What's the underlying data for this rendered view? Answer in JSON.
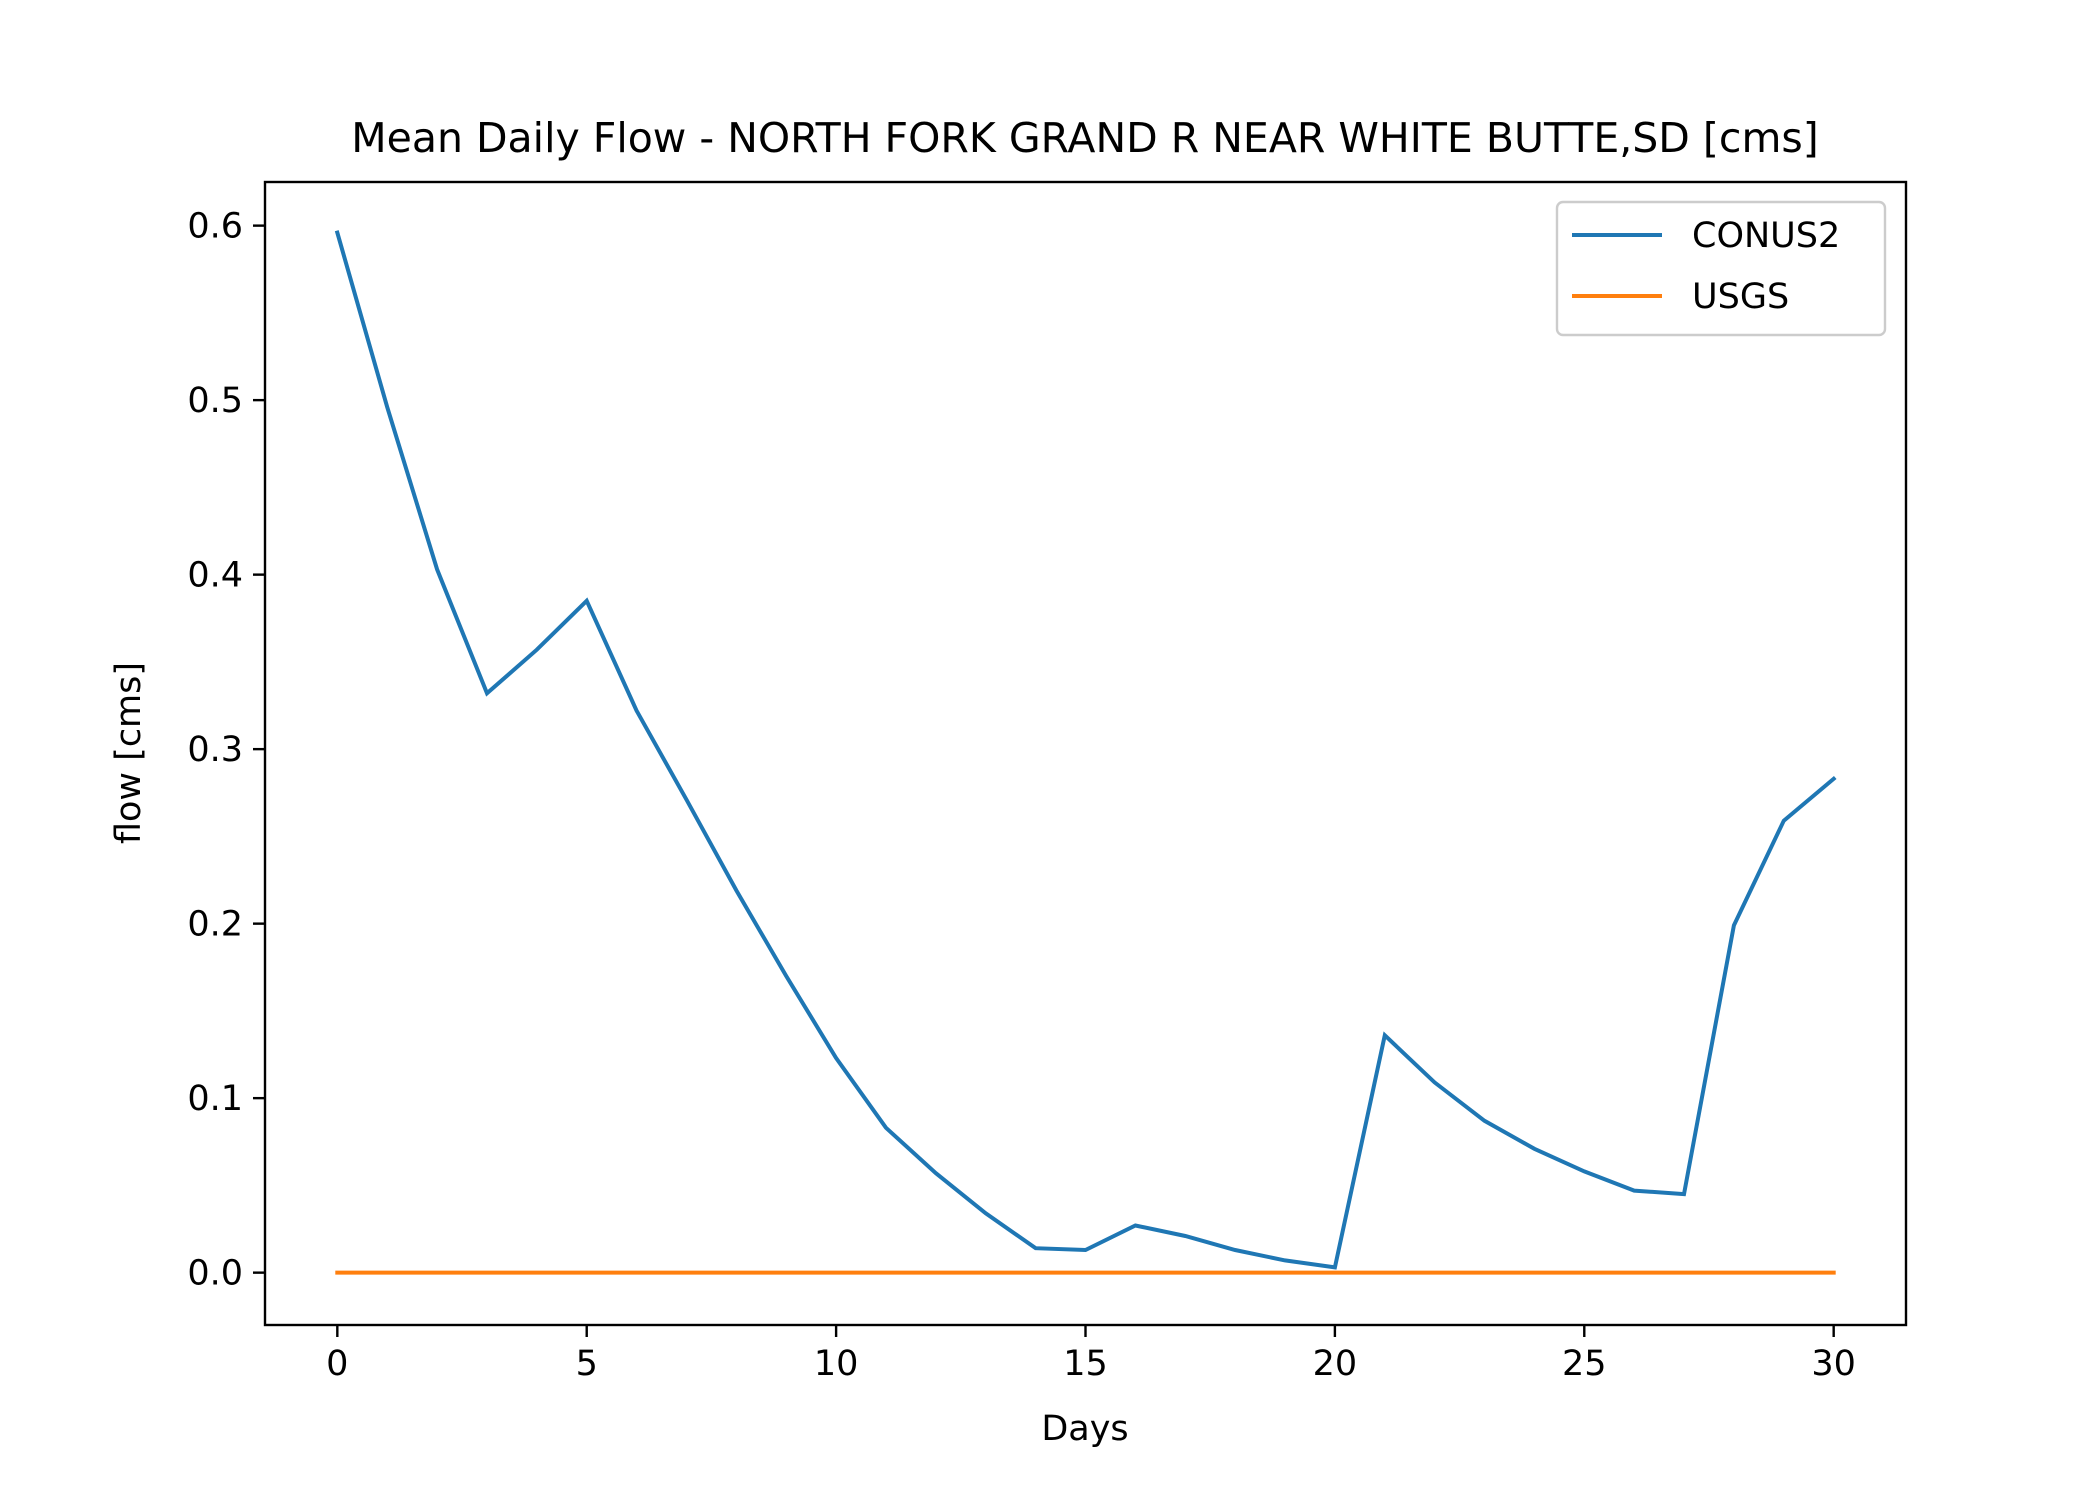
{
  "chart_data": {
    "type": "line",
    "title": "Mean Daily Flow - NORTH FORK GRAND R NEAR WHITE BUTTE,SD [cms]",
    "xlabel": "Days",
    "ylabel": "flow [cms]",
    "xlim": [
      -1.45,
      31.45
    ],
    "ylim": [
      -0.03,
      0.625
    ],
    "xticks": [
      0,
      5,
      10,
      15,
      20,
      25,
      30
    ],
    "xtick_labels": [
      "0",
      "5",
      "10",
      "15",
      "20",
      "25",
      "30"
    ],
    "yticks": [
      0.0,
      0.1,
      0.2,
      0.3,
      0.4,
      0.5,
      0.6
    ],
    "ytick_labels": [
      "0.0",
      "0.1",
      "0.2",
      "0.3",
      "0.4",
      "0.5",
      "0.6"
    ],
    "grid": false,
    "legend_position": "top-right",
    "x": [
      0,
      1,
      2,
      3,
      4,
      5,
      6,
      7,
      8,
      9,
      10,
      11,
      12,
      13,
      14,
      15,
      16,
      17,
      18,
      19,
      20,
      21,
      22,
      23,
      24,
      25,
      26,
      27,
      28,
      29,
      30
    ],
    "series": [
      {
        "name": "CONUS2",
        "color": "#1f77b4",
        "values": [
          0.596,
          0.496,
          0.403,
          0.332,
          0.357,
          0.385,
          0.322,
          0.271,
          0.219,
          0.17,
          0.123,
          0.083,
          0.057,
          0.034,
          0.014,
          0.013,
          0.027,
          0.021,
          0.013,
          0.007,
          0.003,
          0.136,
          0.109,
          0.087,
          0.071,
          0.058,
          0.047,
          0.045,
          0.199,
          0.259,
          0.283
        ]
      },
      {
        "name": "USGS",
        "color": "#ff7f0e",
        "values": [
          0,
          0,
          0,
          0,
          0,
          0,
          0,
          0,
          0,
          0,
          0,
          0,
          0,
          0,
          0,
          0,
          0,
          0,
          0,
          0,
          0,
          0,
          0,
          0,
          0,
          0,
          0,
          0,
          0,
          0,
          0
        ]
      }
    ]
  }
}
